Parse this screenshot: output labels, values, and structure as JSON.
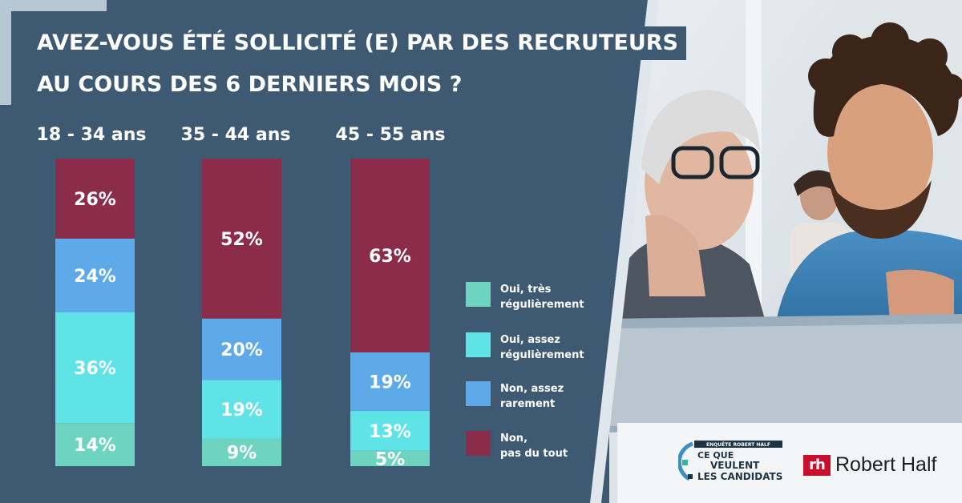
{
  "title": {
    "line1": "AVEZ-VOUS ÉTÉ SOLLICITÉ (E) PAR DES RECRUTEURS",
    "line2": "AU COURS DES 6 DERNIERS MOIS ?"
  },
  "colors": {
    "background": "#3d5a72",
    "tres_regulierement": "#6fd4bf",
    "assez_regulierement": "#5fe3e6",
    "rarement": "#5ea9e8",
    "pas_du_tout": "#8b2d4a"
  },
  "legend": [
    {
      "line1": "Oui, très",
      "line2": "régulièrement",
      "color": "#6fd4bf"
    },
    {
      "line1": "Oui, assez",
      "line2": "régulièrement",
      "color": "#5fe3e6"
    },
    {
      "line1": "Non, assez",
      "line2": "rarement",
      "color": "#5ea9e8"
    },
    {
      "line1": "Non,",
      "line2": "pas du tout",
      "color": "#8b2d4a"
    }
  ],
  "chart_data": {
    "type": "bar",
    "stacked": true,
    "categories": [
      "18 - 34 ans",
      "35 - 44 ans",
      "45 - 55 ans"
    ],
    "series": [
      {
        "name": "Oui, très régulièrement",
        "values": [
          14,
          9,
          5
        ],
        "labels": [
          "14%",
          "9%",
          "5%"
        ]
      },
      {
        "name": "Oui, assez régulièrement",
        "values": [
          36,
          19,
          13
        ],
        "labels": [
          "36%",
          "19%",
          "13%"
        ]
      },
      {
        "name": "Non, assez rarement",
        "values": [
          24,
          20,
          19
        ],
        "labels": [
          "24%",
          "20%",
          "19%"
        ]
      },
      {
        "name": "Non, pas du tout",
        "values": [
          26,
          52,
          63
        ],
        "labels": [
          "26%",
          "52%",
          "63%"
        ]
      }
    ],
    "ylim": [
      0,
      100
    ],
    "grid": false,
    "legend_position": "right"
  },
  "logos": {
    "ceque_top": "ENQUÊTE ROBERT HALF",
    "ceque_line1": "CE QUE",
    "ceque_line2": "VEULENT",
    "ceque_line3": "LES CANDIDATS",
    "rh_mark": "rh",
    "rh_name": "Robert Half"
  }
}
